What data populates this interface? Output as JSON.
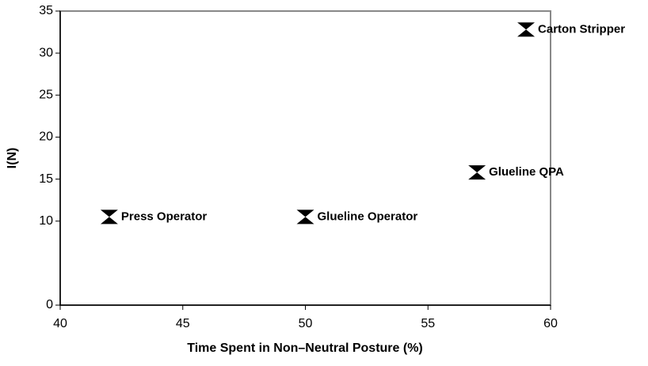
{
  "chart_data": {
    "type": "scatter",
    "xlabel": "Time Spent in Non–Neutral Posture (%)",
    "ylabel": "I(N)",
    "x": [
      42,
      50,
      57,
      59
    ],
    "values": [
      10.5,
      10.5,
      15.8,
      32.8
    ],
    "point_labels": [
      "Press Operator",
      "Glueline Operator",
      "Glueline QPA",
      "Carton Stripper"
    ],
    "color": "#000000",
    "xlim": [
      40,
      60
    ],
    "xticks": [
      40,
      45,
      50,
      55,
      60
    ],
    "ylim": [
      0,
      35
    ],
    "yticks": [
      0,
      10,
      15,
      20,
      25,
      30,
      35
    ]
  }
}
